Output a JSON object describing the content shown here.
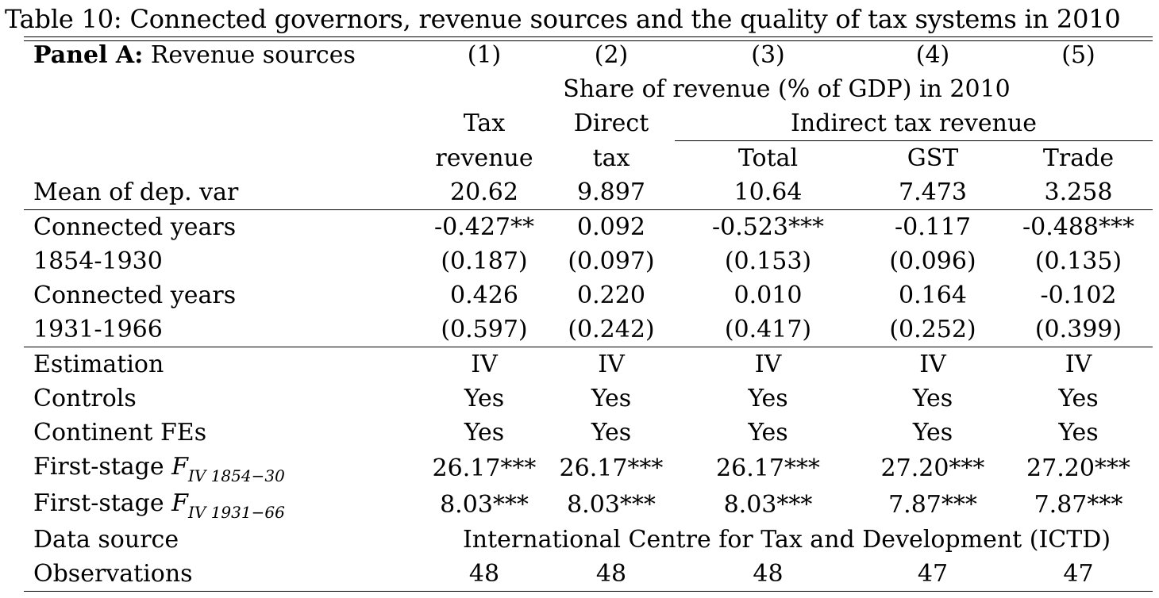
{
  "caption": "Table 10: Connected governors, revenue sources and the quality of tax systems in 2010",
  "panel": {
    "bold": "Panel A:",
    "rest": " Revenue sources"
  },
  "column_numbers": [
    "(1)",
    "(2)",
    "(3)",
    "(4)",
    "(5)"
  ],
  "group_header": "Share of revenue (% of GDP) in 2010",
  "header_row1": {
    "c1": "Tax",
    "c2": "Direct",
    "indirect": "Indirect tax revenue"
  },
  "header_row2": [
    "revenue",
    "tax",
    "Total",
    "GST",
    "Trade"
  ],
  "mean_row": {
    "label": "Mean of dep. var",
    "values": [
      "20.62",
      "9.897",
      "10.64",
      "7.473",
      "3.258"
    ]
  },
  "coef_rows": [
    {
      "label": "Connected years",
      "values": [
        "-0.427**",
        "0.092",
        "-0.523***",
        "-0.117",
        "-0.488***"
      ]
    },
    {
      "label": "1854-1930",
      "values": [
        "(0.187)",
        "(0.097)",
        "(0.153)",
        "(0.096)",
        "(0.135)"
      ]
    },
    {
      "label": "Connected years",
      "values": [
        "0.426",
        "0.220",
        "0.010",
        "0.164",
        "-0.102"
      ]
    },
    {
      "label": "1931-1966",
      "values": [
        "(0.597)",
        "(0.242)",
        "(0.417)",
        "(0.252)",
        "(0.399)"
      ]
    }
  ],
  "spec_rows": [
    {
      "label": "Estimation",
      "values": [
        "IV",
        "IV",
        "IV",
        "IV",
        "IV"
      ]
    },
    {
      "label": "Controls",
      "values": [
        "Yes",
        "Yes",
        "Yes",
        "Yes",
        "Yes"
      ]
    },
    {
      "label": "Continent FEs",
      "values": [
        "Yes",
        "Yes",
        "Yes",
        "Yes",
        "Yes"
      ]
    }
  ],
  "fstage1": {
    "label": "First-stage ",
    "F": "F",
    "sub": "IV 1854−30",
    "values": [
      "26.17***",
      "26.17***",
      "26.17***",
      "27.20***",
      "27.20***"
    ]
  },
  "fstage2": {
    "label": "First-stage ",
    "F": "F",
    "sub": "IV 1931−66",
    "values": [
      "8.03***",
      "8.03***",
      "8.03***",
      "7.87***",
      "7.87***"
    ]
  },
  "data_source": {
    "label": "Data source",
    "value": "International Centre for Tax and Development (ICTD)"
  },
  "observations": {
    "label": "Observations",
    "values": [
      "48",
      "48",
      "48",
      "47",
      "47"
    ]
  }
}
